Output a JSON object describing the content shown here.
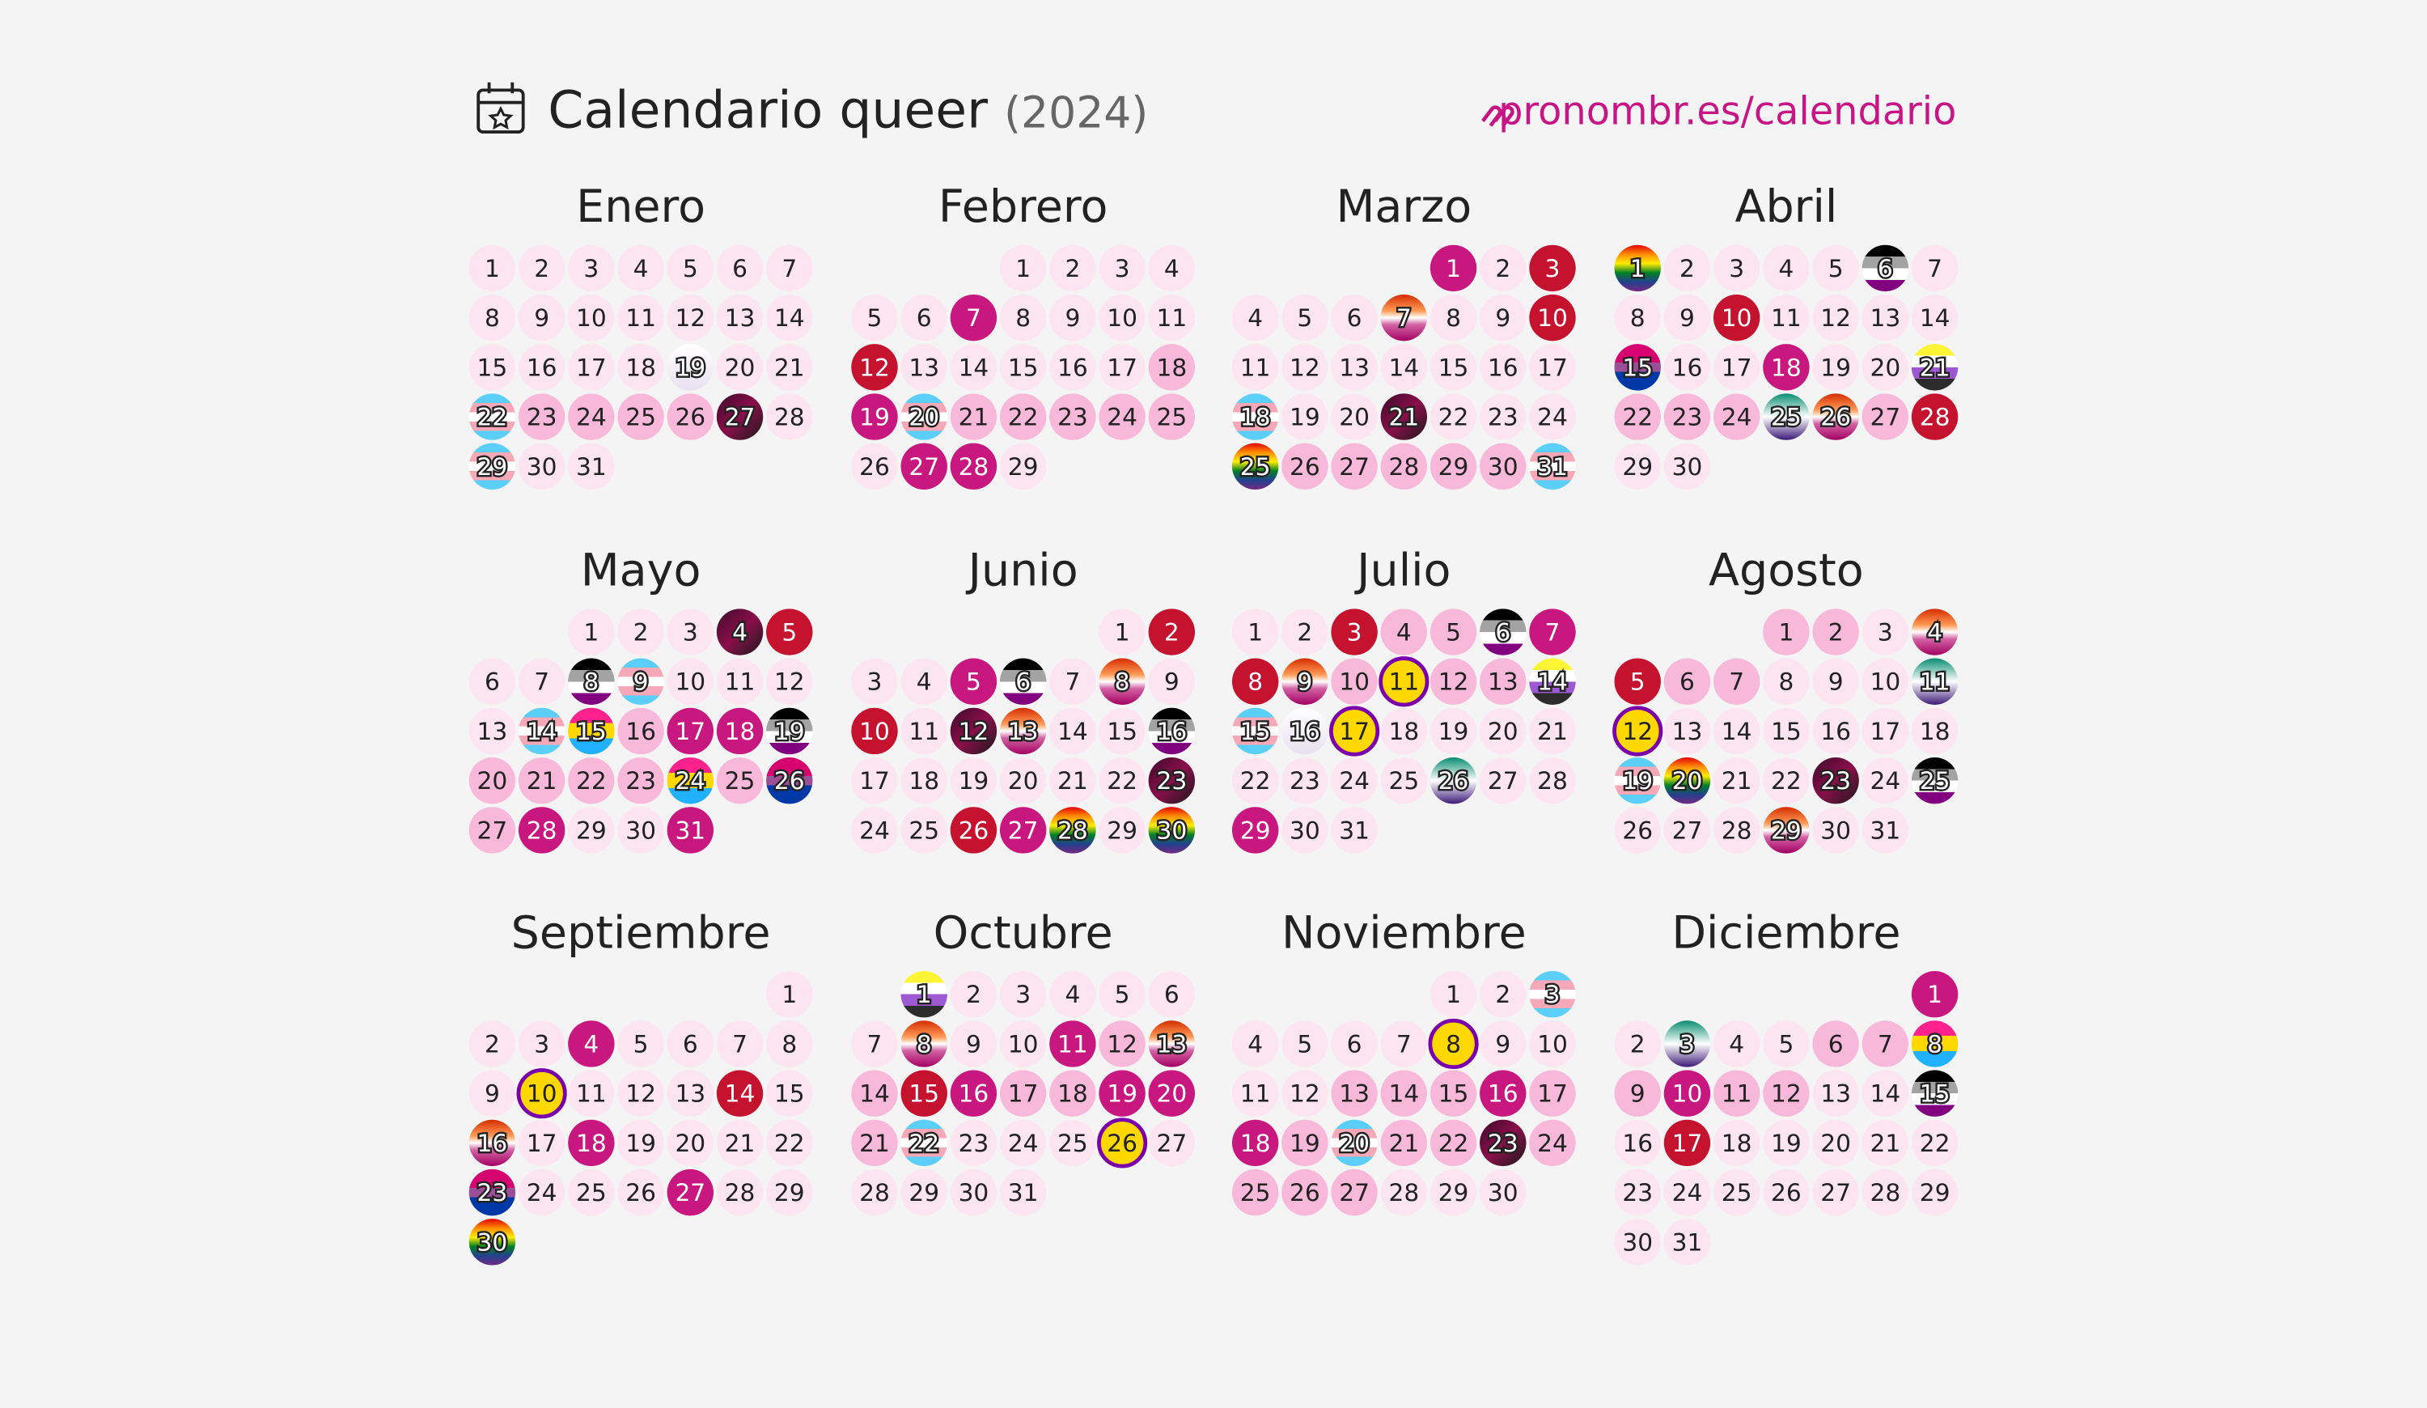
{
  "header": {
    "title": "Calendario queer",
    "year": "(2024)",
    "link": "pronombr.es/calendario"
  },
  "months": [
    {
      "name": "Enero",
      "offset": 0,
      "styles": "llllllllllllllllllWllTppppXlTll",
      "days": [
        1,
        2,
        3,
        4,
        5,
        6,
        7,
        8,
        9,
        10,
        11,
        12,
        13,
        14,
        15,
        16,
        17,
        18,
        19,
        20,
        21,
        22,
        23,
        24,
        25,
        26,
        27,
        28,
        29,
        30,
        31
      ]
    },
    {
      "name": "Febrero",
      "offset": 3,
      "styles": "llllllmllllrlllllpmTppppplmml",
      "days": [
        1,
        2,
        3,
        4,
        5,
        6,
        7,
        8,
        9,
        10,
        11,
        12,
        13,
        14,
        15,
        16,
        17,
        18,
        19,
        20,
        21,
        22,
        23,
        24,
        25,
        26,
        27,
        28,
        29
      ]
    },
    {
      "name": "Marzo",
      "offset": 4,
      "styles": "mlrlllLllrlllllllTllXlllRpppppT",
      "days": [
        1,
        2,
        3,
        4,
        5,
        6,
        7,
        8,
        9,
        10,
        11,
        12,
        13,
        14,
        15,
        16,
        17,
        18,
        19,
        20,
        21,
        22,
        23,
        24,
        25,
        26,
        27,
        28,
        29,
        30,
        31
      ]
    },
    {
      "name": "Abril",
      "offset": 0,
      "styles": "RllllAlllrllllBllmllNpppGLprll",
      "days": [
        1,
        2,
        3,
        4,
        5,
        6,
        7,
        8,
        9,
        10,
        11,
        12,
        13,
        14,
        15,
        16,
        17,
        18,
        19,
        20,
        21,
        22,
        23,
        24,
        25,
        26,
        27,
        28,
        29,
        30
      ]
    },
    {
      "name": "Mayo",
      "offset": 2,
      "styles": "lllXrllATllllTPpmmAppppPpBpmllm",
      "days": [
        1,
        2,
        3,
        4,
        5,
        6,
        7,
        8,
        9,
        10,
        11,
        12,
        13,
        14,
        15,
        16,
        17,
        18,
        19,
        20,
        21,
        22,
        23,
        24,
        25,
        26,
        27,
        28,
        29,
        30,
        31
      ]
    },
    {
      "name": "Junio",
      "offset": 5,
      "styles": "lrllmAlLlrlXLllAllllllXllrmRlR",
      "days": [
        1,
        2,
        3,
        4,
        5,
        6,
        7,
        8,
        9,
        10,
        11,
        12,
        13,
        14,
        15,
        16,
        17,
        18,
        19,
        20,
        21,
        22,
        23,
        24,
        25,
        26,
        27,
        28,
        29,
        30
      ]
    },
    {
      "name": "Julio",
      "offset": 0,
      "styles": "llrppAmrLpIppNTWIllllllllGllmll",
      "days": [
        1,
        2,
        3,
        4,
        5,
        6,
        7,
        8,
        9,
        10,
        11,
        12,
        13,
        14,
        15,
        16,
        17,
        18,
        19,
        20,
        21,
        22,
        23,
        24,
        25,
        26,
        27,
        28,
        29,
        30,
        31
      ]
    },
    {
      "name": "Agosto",
      "offset": 3,
      "styles": "pplLrpplllGIllllllTRllXlAlllLll",
      "days": [
        1,
        2,
        3,
        4,
        5,
        6,
        7,
        8,
        9,
        10,
        11,
        12,
        13,
        14,
        15,
        16,
        17,
        18,
        19,
        20,
        21,
        22,
        23,
        24,
        25,
        26,
        27,
        28,
        29,
        30,
        31
      ]
    },
    {
      "name": "Septiembre",
      "offset": 6,
      "styles": "lllmlllllIlllrlLlmllllBlllmllR",
      "days": [
        1,
        2,
        3,
        4,
        5,
        6,
        7,
        8,
        9,
        10,
        11,
        12,
        13,
        14,
        15,
        16,
        17,
        18,
        19,
        20,
        21,
        22,
        23,
        24,
        25,
        26,
        27,
        28,
        29,
        30
      ]
    },
    {
      "name": "Octubre",
      "offset": 1,
      "styles": "NllllllLllmpLprmppmmpTlllIlllll",
      "days": [
        1,
        2,
        3,
        4,
        5,
        6,
        7,
        8,
        9,
        10,
        11,
        12,
        13,
        14,
        15,
        16,
        17,
        18,
        19,
        20,
        21,
        22,
        23,
        24,
        25,
        26,
        27,
        28,
        29,
        30,
        31
      ]
    },
    {
      "name": "Noviembre",
      "offset": 4,
      "styles": "llTllllIllllpppmpmpTppXpppplll",
      "days": [
        1,
        2,
        3,
        4,
        5,
        6,
        7,
        8,
        9,
        10,
        11,
        12,
        13,
        14,
        15,
        16,
        17,
        18,
        19,
        20,
        21,
        22,
        23,
        24,
        25,
        26,
        27,
        28,
        29,
        30
      ]
    },
    {
      "name": "Diciembre",
      "offset": 6,
      "styles": "mlGllppPpmppllAlrllllllllllllll",
      "days": [
        1,
        2,
        3,
        4,
        5,
        6,
        7,
        8,
        9,
        10,
        11,
        12,
        13,
        14,
        15,
        16,
        17,
        18,
        19,
        20,
        21,
        22,
        23,
        24,
        25,
        26,
        27,
        28,
        29,
        30,
        31
      ]
    }
  ]
}
